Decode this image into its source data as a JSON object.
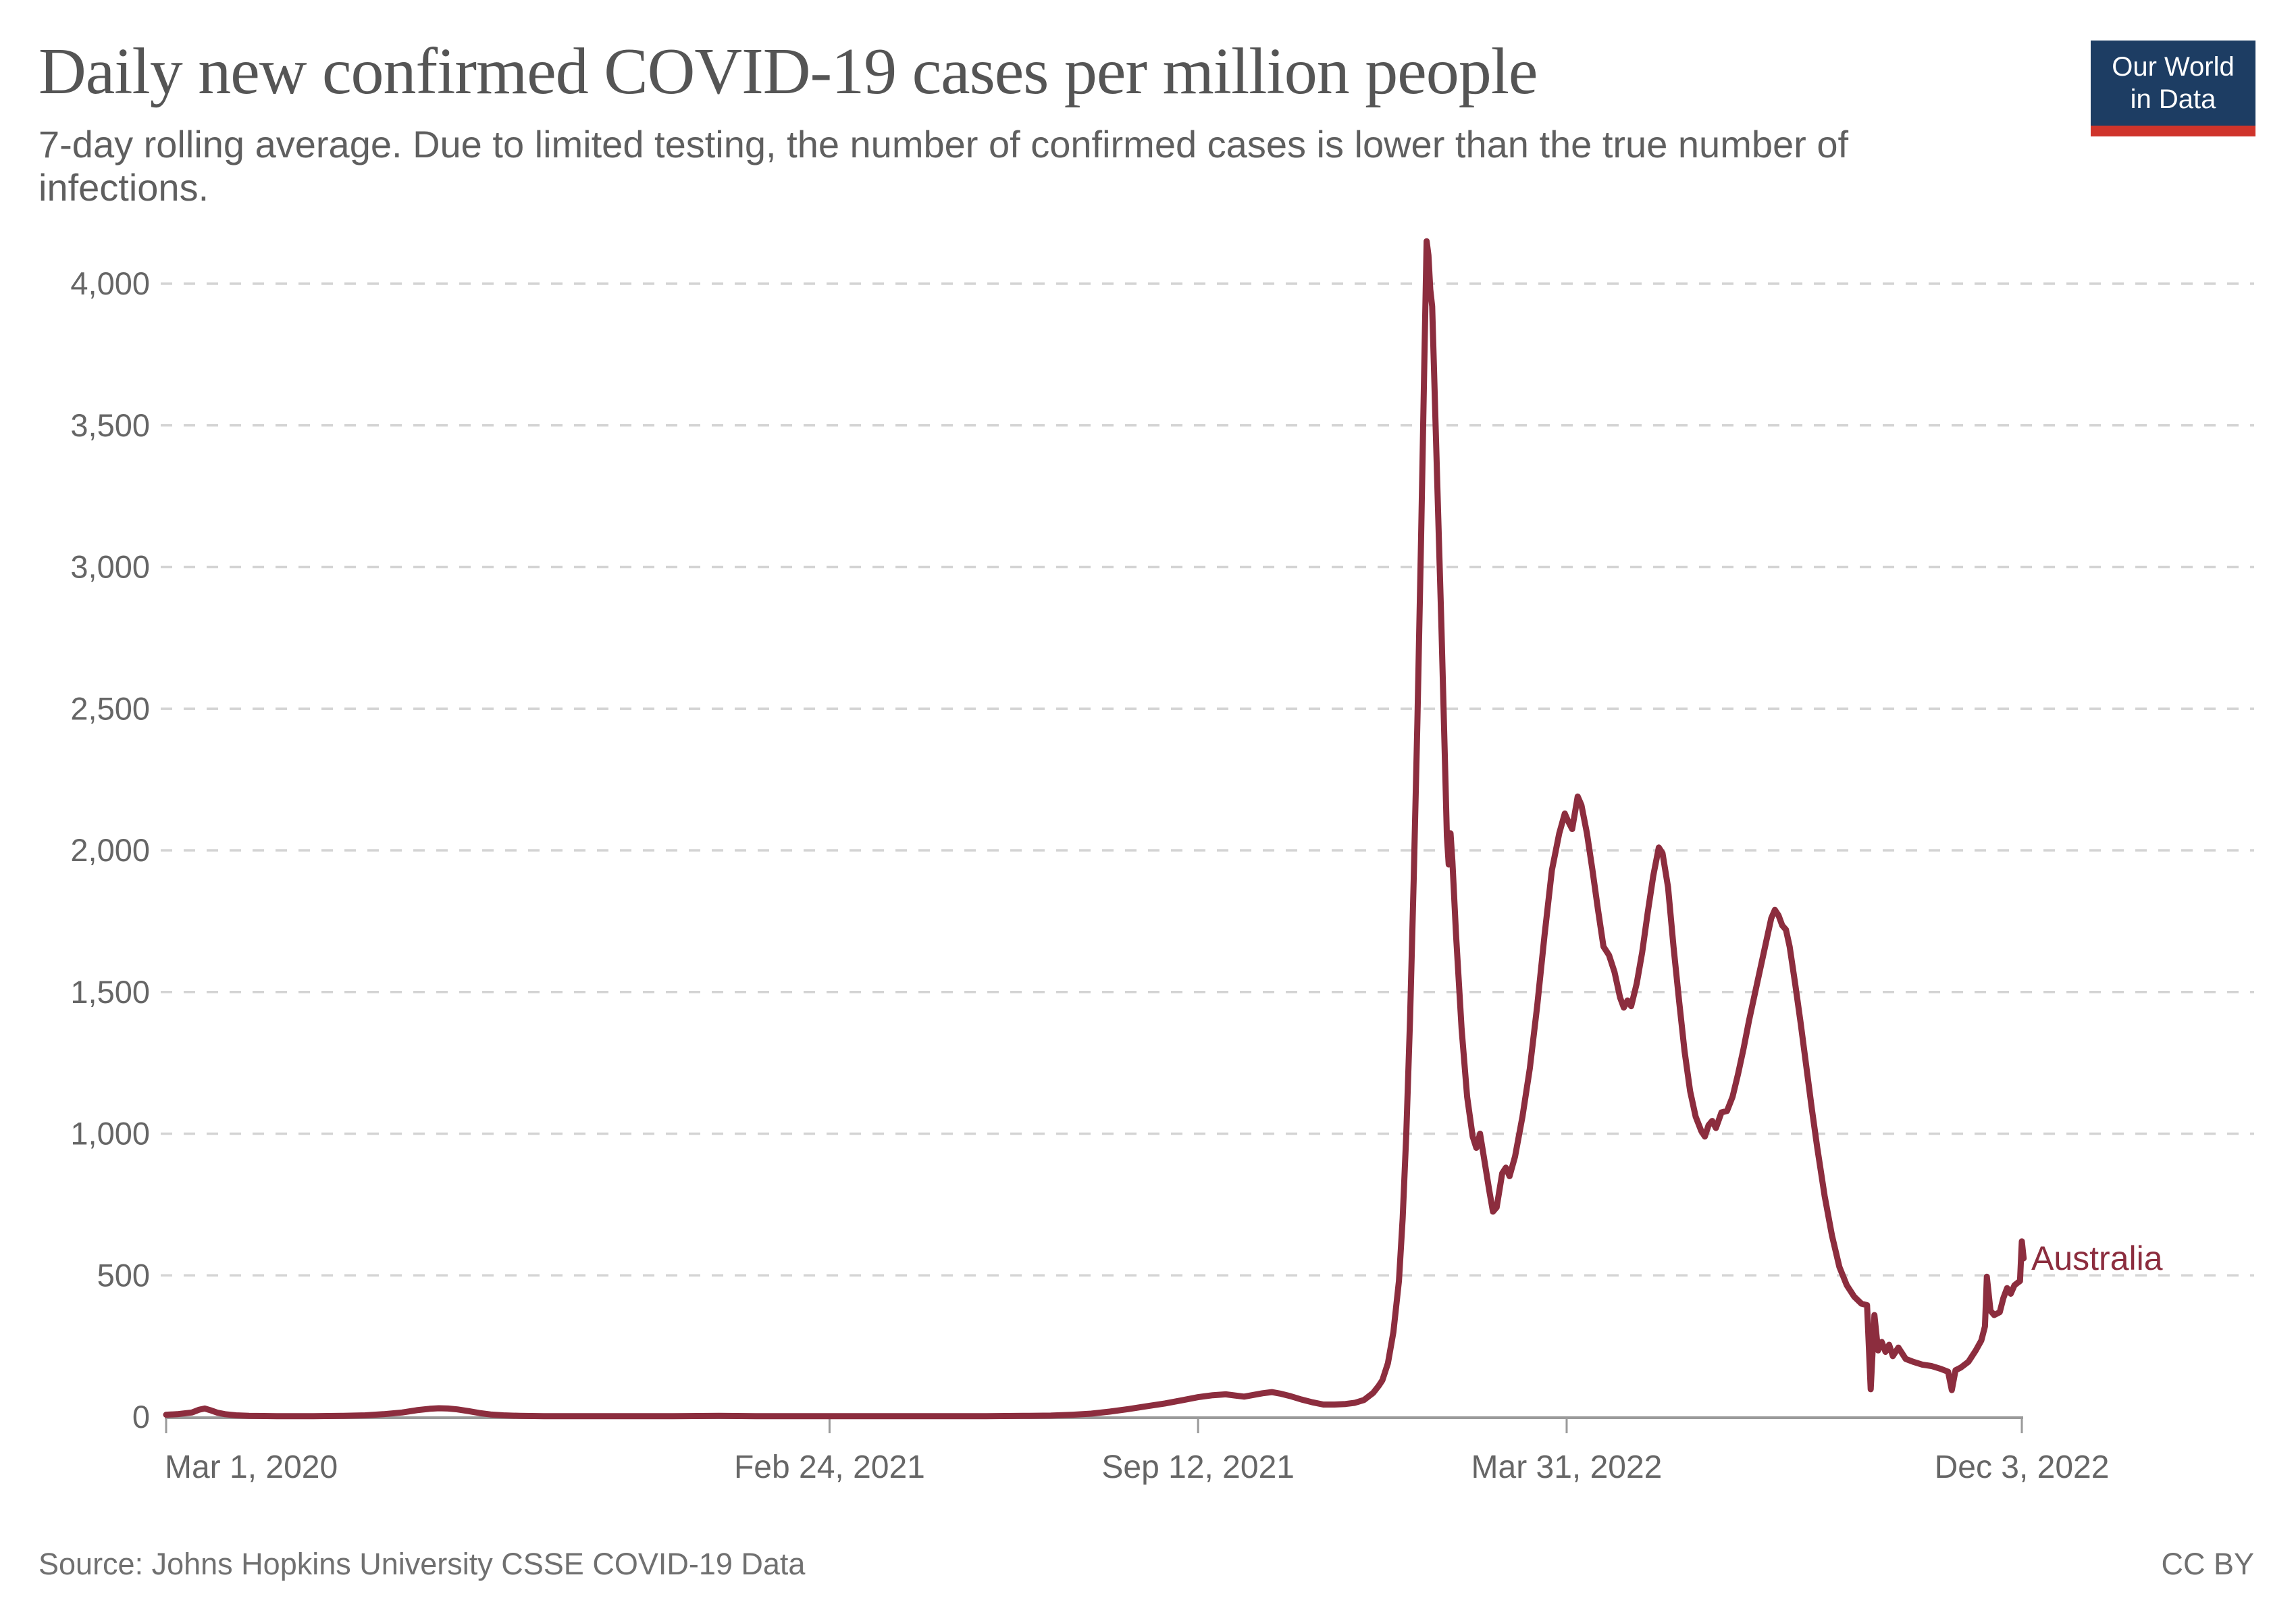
{
  "header": {
    "title": "Daily new confirmed COVID-19 cases per million people",
    "subtitle": "7-day rolling average. Due to limited testing, the number of confirmed cases is lower than the true number of infections.",
    "logo": {
      "line1": "Our World",
      "line2": "in Data",
      "bg_color": "#1d3d63",
      "bar_color": "#cf342b"
    }
  },
  "footer": {
    "source": "Source: Johns Hopkins University CSSE COVID-19 Data",
    "license": "CC BY"
  },
  "annotations": {
    "series_label": "Australia"
  },
  "chart_data": {
    "type": "line",
    "title": "Daily new confirmed COVID-19 cases per million people",
    "subtitle": "7-day rolling average. Due to limited testing, the number of confirmed cases is lower than the true number of infections.",
    "xlabel": "",
    "ylabel": "",
    "legend_position": "end-of-line-label",
    "grid": true,
    "grid_color": "#d4d4d4",
    "axis_color": "#9a9a9a",
    "tick_label_color": "#666666",
    "x": {
      "unit": "days since Mar 1, 2020",
      "domain": [
        0,
        1008
      ],
      "ticks": [
        {
          "d": 0,
          "label": "Mar 1, 2020",
          "align": "start"
        },
        {
          "d": 360,
          "label": "Feb 24, 2021",
          "align": "middle"
        },
        {
          "d": 560,
          "label": "Sep 12, 2021",
          "align": "middle"
        },
        {
          "d": 760,
          "label": "Mar 31, 2022",
          "align": "middle"
        },
        {
          "d": 1007,
          "label": "Dec 3, 2022",
          "align": "middle"
        }
      ]
    },
    "y": {
      "domain": [
        0,
        4150
      ],
      "ticks": [
        {
          "v": 0,
          "label": "0"
        },
        {
          "v": 500,
          "label": "500"
        },
        {
          "v": 1000,
          "label": "1,000"
        },
        {
          "v": 1500,
          "label": "1,500"
        },
        {
          "v": 2000,
          "label": "2,000"
        },
        {
          "v": 2500,
          "label": "2,500"
        },
        {
          "v": 3000,
          "label": "3,000"
        },
        {
          "v": 3500,
          "label": "3,500"
        },
        {
          "v": 4000,
          "label": "4,000"
        }
      ]
    },
    "series": [
      {
        "name": "Australia",
        "color": "#8c2d3e",
        "points": [
          [
            0,
            8
          ],
          [
            6,
            10
          ],
          [
            14,
            16
          ],
          [
            18,
            26
          ],
          [
            21,
            30
          ],
          [
            24,
            24
          ],
          [
            28,
            15
          ],
          [
            32,
            10
          ],
          [
            38,
            6
          ],
          [
            45,
            4
          ],
          [
            60,
            3
          ],
          [
            80,
            3
          ],
          [
            95,
            4
          ],
          [
            108,
            6
          ],
          [
            118,
            10
          ],
          [
            128,
            16
          ],
          [
            136,
            24
          ],
          [
            143,
            29
          ],
          [
            148,
            31
          ],
          [
            153,
            30
          ],
          [
            158,
            27
          ],
          [
            164,
            21
          ],
          [
            170,
            14
          ],
          [
            176,
            9
          ],
          [
            183,
            6
          ],
          [
            192,
            4
          ],
          [
            205,
            3
          ],
          [
            225,
            3
          ],
          [
            250,
            3
          ],
          [
            275,
            3
          ],
          [
            300,
            4
          ],
          [
            320,
            3
          ],
          [
            345,
            3
          ],
          [
            370,
            3
          ],
          [
            395,
            3
          ],
          [
            420,
            3
          ],
          [
            445,
            3
          ],
          [
            465,
            4
          ],
          [
            480,
            5
          ],
          [
            492,
            8
          ],
          [
            502,
            12
          ],
          [
            512,
            19
          ],
          [
            522,
            28
          ],
          [
            532,
            38
          ],
          [
            542,
            48
          ],
          [
            552,
            60
          ],
          [
            560,
            70
          ],
          [
            568,
            77
          ],
          [
            575,
            80
          ],
          [
            580,
            76
          ],
          [
            585,
            72
          ],
          [
            590,
            78
          ],
          [
            595,
            84
          ],
          [
            600,
            88
          ],
          [
            605,
            82
          ],
          [
            610,
            74
          ],
          [
            616,
            62
          ],
          [
            622,
            52
          ],
          [
            628,
            44
          ],
          [
            634,
            44
          ],
          [
            640,
            46
          ],
          [
            645,
            50
          ],
          [
            650,
            60
          ],
          [
            655,
            85
          ],
          [
            658,
            110
          ],
          [
            660,
            130
          ],
          [
            663,
            190
          ],
          [
            666,
            300
          ],
          [
            669,
            480
          ],
          [
            671,
            700
          ],
          [
            673,
            1000
          ],
          [
            675,
            1400
          ],
          [
            677,
            1900
          ],
          [
            679,
            2450
          ],
          [
            681,
            3100
          ],
          [
            683,
            3800
          ],
          [
            684,
            4150
          ],
          [
            685,
            4100
          ],
          [
            686,
            3980
          ],
          [
            687,
            3920
          ],
          [
            688,
            3700
          ],
          [
            690,
            3250
          ],
          [
            692,
            2800
          ],
          [
            694,
            2300
          ],
          [
            695,
            2050
          ],
          [
            696,
            1950
          ],
          [
            697,
            2060
          ],
          [
            698,
            1960
          ],
          [
            700,
            1700
          ],
          [
            703,
            1370
          ],
          [
            706,
            1130
          ],
          [
            709,
            990
          ],
          [
            711,
            950
          ],
          [
            713,
            1000
          ],
          [
            715,
            920
          ],
          [
            718,
            800
          ],
          [
            720,
            725
          ],
          [
            722,
            740
          ],
          [
            725,
            860
          ],
          [
            727,
            880
          ],
          [
            729,
            850
          ],
          [
            732,
            920
          ],
          [
            736,
            1060
          ],
          [
            740,
            1230
          ],
          [
            744,
            1450
          ],
          [
            748,
            1700
          ],
          [
            752,
            1930
          ],
          [
            756,
            2060
          ],
          [
            759,
            2130
          ],
          [
            761,
            2100
          ],
          [
            763,
            2075
          ],
          [
            766,
            2190
          ],
          [
            768,
            2160
          ],
          [
            771,
            2060
          ],
          [
            774,
            1930
          ],
          [
            777,
            1790
          ],
          [
            780,
            1660
          ],
          [
            783,
            1630
          ],
          [
            786,
            1570
          ],
          [
            789,
            1480
          ],
          [
            791,
            1445
          ],
          [
            793,
            1470
          ],
          [
            795,
            1450
          ],
          [
            798,
            1530
          ],
          [
            801,
            1640
          ],
          [
            804,
            1780
          ],
          [
            807,
            1910
          ],
          [
            810,
            2010
          ],
          [
            812,
            1990
          ],
          [
            815,
            1870
          ],
          [
            818,
            1660
          ],
          [
            821,
            1470
          ],
          [
            824,
            1290
          ],
          [
            827,
            1150
          ],
          [
            830,
            1060
          ],
          [
            833,
            1010
          ],
          [
            835,
            990
          ],
          [
            837,
            1030
          ],
          [
            839,
            1045
          ],
          [
            841,
            1020
          ],
          [
            844,
            1075
          ],
          [
            847,
            1080
          ],
          [
            850,
            1130
          ],
          [
            853,
            1210
          ],
          [
            856,
            1300
          ],
          [
            859,
            1400
          ],
          [
            862,
            1490
          ],
          [
            865,
            1580
          ],
          [
            868,
            1670
          ],
          [
            871,
            1760
          ],
          [
            873,
            1790
          ],
          [
            875,
            1770
          ],
          [
            877,
            1735
          ],
          [
            879,
            1720
          ],
          [
            881,
            1660
          ],
          [
            884,
            1530
          ],
          [
            887,
            1390
          ],
          [
            890,
            1240
          ],
          [
            893,
            1090
          ],
          [
            896,
            950
          ],
          [
            900,
            780
          ],
          [
            904,
            640
          ],
          [
            908,
            530
          ],
          [
            912,
            465
          ],
          [
            916,
            425
          ],
          [
            920,
            400
          ],
          [
            923,
            395
          ],
          [
            925,
            98
          ],
          [
            927,
            360
          ],
          [
            929,
            235
          ],
          [
            931,
            265
          ],
          [
            933,
            230
          ],
          [
            935,
            255
          ],
          [
            937,
            215
          ],
          [
            940,
            245
          ],
          [
            944,
            205
          ],
          [
            948,
            195
          ],
          [
            953,
            185
          ],
          [
            958,
            180
          ],
          [
            963,
            170
          ],
          [
            967,
            160
          ],
          [
            969,
            95
          ],
          [
            971,
            165
          ],
          [
            974,
            175
          ],
          [
            978,
            195
          ],
          [
            982,
            235
          ],
          [
            985,
            270
          ],
          [
            987,
            320
          ],
          [
            988,
            495
          ],
          [
            990,
            375
          ],
          [
            992,
            360
          ],
          [
            995,
            370
          ],
          [
            997,
            420
          ],
          [
            999,
            455
          ],
          [
            1001,
            435
          ],
          [
            1003,
            465
          ],
          [
            1005,
            475
          ],
          [
            1006,
            480
          ],
          [
            1007,
            620
          ],
          [
            1008,
            560
          ]
        ]
      }
    ]
  }
}
